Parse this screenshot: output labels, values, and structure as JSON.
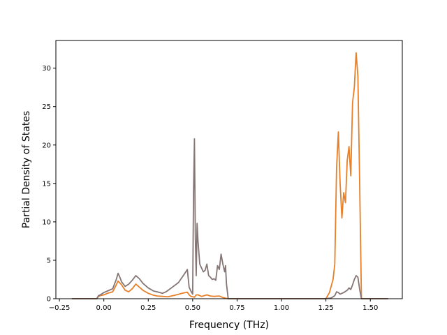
{
  "chart_data": {
    "type": "line",
    "title": "",
    "xlabel": "Frequency (THz)",
    "ylabel": "Partial Density of States",
    "xlim": [
      -0.27,
      1.68
    ],
    "ylim": [
      0,
      33.6
    ],
    "xticks": [
      -0.25,
      0.0,
      0.25,
      0.5,
      0.75,
      1.0,
      1.25,
      1.5
    ],
    "xtick_labels": [
      "−0.25",
      "0.00",
      "0.25",
      "0.50",
      "0.75",
      "1.00",
      "1.25",
      "1.50"
    ],
    "yticks": [
      0,
      5,
      10,
      15,
      20,
      25,
      30
    ],
    "ytick_labels": [
      "0",
      "5",
      "10",
      "15",
      "20",
      "25",
      "30"
    ],
    "grid": false,
    "legend": "none",
    "series": [
      {
        "color": "#e6802a",
        "x": [
          -0.18,
          -0.04,
          -0.03,
          -0.02,
          0.0,
          0.02,
          0.05,
          0.07,
          0.08,
          0.1,
          0.12,
          0.14,
          0.16,
          0.18,
          0.2,
          0.22,
          0.25,
          0.28,
          0.3,
          0.33,
          0.36,
          0.4,
          0.44,
          0.47,
          0.48,
          0.49,
          0.5,
          0.51,
          0.52,
          0.53,
          0.55,
          0.58,
          0.6,
          0.62,
          0.65,
          0.67,
          0.68,
          0.69,
          0.7,
          0.72,
          1.25,
          1.27,
          1.29,
          1.3,
          1.31,
          1.32,
          1.33,
          1.34,
          1.35,
          1.36,
          1.37,
          1.38,
          1.39,
          1.4,
          1.41,
          1.42,
          1.43,
          1.44,
          1.45,
          1.5,
          1.6
        ],
        "y": [
          0,
          0,
          0.3,
          0.4,
          0.5,
          0.7,
          0.9,
          1.8,
          2.3,
          1.8,
          1.1,
          0.9,
          1.3,
          1.9,
          1.5,
          1.1,
          0.7,
          0.45,
          0.35,
          0.3,
          0.25,
          0.45,
          0.7,
          0.85,
          0.5,
          0.3,
          0.25,
          0.2,
          0.5,
          0.5,
          0.3,
          0.5,
          0.35,
          0.3,
          0.35,
          0.15,
          0.1,
          0.05,
          0,
          0,
          0,
          0.8,
          2.5,
          4.5,
          17.0,
          21.7,
          15.0,
          10.5,
          13.8,
          12.5,
          18.0,
          19.8,
          16.0,
          25.5,
          27.5,
          32.0,
          29.0,
          15.0,
          0,
          0,
          0
        ]
      },
      {
        "color": "#857575",
        "x": [
          -0.18,
          -0.04,
          -0.03,
          -0.02,
          0.0,
          0.02,
          0.05,
          0.07,
          0.08,
          0.09,
          0.1,
          0.12,
          0.14,
          0.16,
          0.18,
          0.2,
          0.22,
          0.25,
          0.28,
          0.3,
          0.33,
          0.35,
          0.38,
          0.42,
          0.45,
          0.47,
          0.48,
          0.49,
          0.5,
          0.505,
          0.51,
          0.515,
          0.52,
          0.525,
          0.53,
          0.54,
          0.55,
          0.56,
          0.57,
          0.58,
          0.59,
          0.6,
          0.61,
          0.62,
          0.63,
          0.64,
          0.65,
          0.66,
          0.67,
          0.68,
          0.685,
          0.69,
          0.7,
          0.72,
          1.25,
          1.28,
          1.3,
          1.31,
          1.32,
          1.33,
          1.35,
          1.37,
          1.38,
          1.39,
          1.4,
          1.41,
          1.42,
          1.43,
          1.44,
          1.45,
          1.5,
          1.6
        ],
        "y": [
          0,
          0,
          0.4,
          0.5,
          0.8,
          1.0,
          1.3,
          2.5,
          3.3,
          2.8,
          2.2,
          1.6,
          1.9,
          2.4,
          3.0,
          2.6,
          2.0,
          1.4,
          1.0,
          0.9,
          0.7,
          0.9,
          1.4,
          2.1,
          3.1,
          3.8,
          1.5,
          1.0,
          0.6,
          14.0,
          20.8,
          8.0,
          3.0,
          9.8,
          7.5,
          4.5,
          4.0,
          3.5,
          3.7,
          4.5,
          3.0,
          2.8,
          2.5,
          2.6,
          2.4,
          4.3,
          3.8,
          5.8,
          4.5,
          3.5,
          4.3,
          2.0,
          0,
          0,
          0,
          0.1,
          0.4,
          0.9,
          0.8,
          0.6,
          0.8,
          1.1,
          1.4,
          1.2,
          1.8,
          2.5,
          3.0,
          2.8,
          1.2,
          0,
          0,
          0
        ]
      }
    ]
  }
}
